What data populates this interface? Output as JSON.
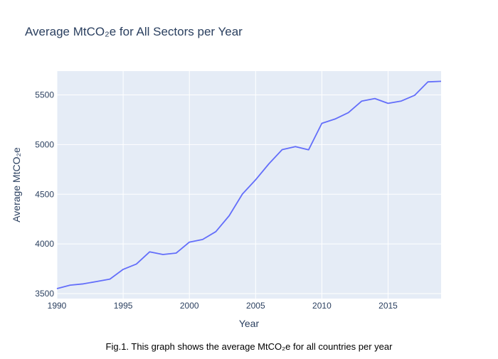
{
  "chart_data": {
    "type": "line",
    "title": "Average MtCO₂e for All Sectors per Year",
    "xlabel": "Year",
    "ylabel": "Average MtCO₂e",
    "caption": "Fig.1. This graph shows the average MtCO₂e for all countries per year",
    "xlim": [
      1990,
      2019
    ],
    "ylim": [
      3450,
      5740
    ],
    "x_ticks": [
      1990,
      1995,
      2000,
      2005,
      2010,
      2015
    ],
    "y_ticks": [
      3500,
      4000,
      4500,
      5000,
      5500
    ],
    "x_tick_labels": [
      "1990",
      "1995",
      "2000",
      "2005",
      "2010",
      "2015"
    ],
    "y_tick_labels": [
      "3500",
      "4000",
      "4500",
      "5000",
      "5500"
    ],
    "grid": true,
    "legend": "none",
    "series": [
      {
        "color": "#636efa",
        "x": [
          1990,
          1991,
          1992,
          1993,
          1994,
          1995,
          1996,
          1997,
          1998,
          1999,
          2000,
          2001,
          2002,
          2003,
          2004,
          2005,
          2006,
          2007,
          2008,
          2009,
          2010,
          2011,
          2012,
          2013,
          2014,
          2015,
          2016,
          2017,
          2018,
          2019
        ],
        "y": [
          3550,
          3585,
          3598,
          3622,
          3646,
          3744,
          3798,
          3920,
          3894,
          3908,
          4018,
          4045,
          4124,
          4284,
          4502,
          4646,
          4806,
          4949,
          4980,
          4948,
          5214,
          5258,
          5322,
          5437,
          5464,
          5415,
          5439,
          5496,
          5631,
          5637
        ]
      }
    ],
    "colors": {
      "plot_background": "#e5ecf6",
      "gridline": "#ffffff",
      "line": "#636efa",
      "text": "#2a3f5f"
    }
  }
}
